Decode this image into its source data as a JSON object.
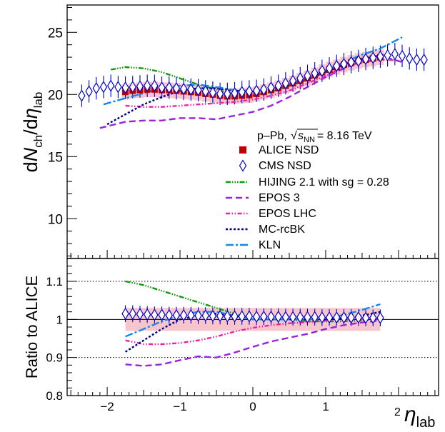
{
  "chart_data": [
    {
      "type": "scatter",
      "panel": "top",
      "collision": "p–Pb,",
      "energy_prefix": "s",
      "energy_sub": "NN",
      "energy_value": "= 8.16 TeV",
      "ylabel": {
        "d1": "d",
        "N": "N",
        "sub1": "ch",
        "slash": "/d",
        "eta": "η",
        "sub2": "lab"
      },
      "xlim": [
        -2.55,
        2.55
      ],
      "ylim": [
        6.8,
        27.2
      ],
      "yticks": [
        "10",
        "15",
        "20",
        "25"
      ],
      "legend_position": "middle-right",
      "series": [
        {
          "name": "ALICE NSD",
          "kind": "square",
          "color": "#c00000",
          "syst_band": 0.62,
          "x": [
            -1.75,
            -1.65,
            -1.55,
            -1.45,
            -1.35,
            -1.25,
            -1.15,
            -1.05,
            -0.95,
            -0.85,
            -0.75,
            -0.65,
            -0.55,
            -0.45,
            -0.35,
            -0.25,
            -0.15,
            -0.05,
            0.05,
            0.15,
            0.25,
            0.35,
            0.45,
            0.55,
            0.65,
            0.75,
            0.85,
            0.95,
            1.05,
            1.15,
            1.25,
            1.35,
            1.45,
            1.55,
            1.65,
            1.75
          ],
          "y": [
            20.2,
            20.3,
            20.35,
            20.4,
            20.4,
            20.35,
            20.35,
            20.3,
            20.25,
            20.2,
            20.15,
            20.05,
            20.0,
            19.9,
            19.85,
            19.85,
            19.9,
            19.95,
            20.05,
            20.2,
            20.35,
            20.5,
            20.7,
            20.9,
            21.1,
            21.3,
            21.55,
            21.8,
            22.0,
            22.2,
            22.4,
            22.55,
            22.7,
            22.8,
            22.9,
            23.0
          ]
        },
        {
          "name": "CMS NSD",
          "kind": "diamond",
          "color": "#0000cc",
          "err": 0.9,
          "x": [
            -2.35,
            -2.25,
            -2.15,
            -2.05,
            -1.95,
            -1.85,
            -1.75,
            -1.65,
            -1.55,
            -1.45,
            -1.35,
            -1.25,
            -1.15,
            -1.05,
            -0.95,
            -0.85,
            -0.75,
            -0.65,
            -0.55,
            -0.45,
            -0.35,
            -0.25,
            -0.15,
            -0.05,
            0.05,
            0.15,
            0.25,
            0.35,
            0.45,
            0.55,
            0.65,
            0.75,
            0.85,
            0.95,
            1.05,
            1.15,
            1.25,
            1.35,
            1.45,
            1.55,
            1.65,
            1.75,
            1.85,
            1.95,
            2.05,
            2.15,
            2.25,
            2.35
          ],
          "y": [
            19.9,
            20.25,
            20.5,
            20.6,
            20.7,
            20.6,
            20.55,
            20.6,
            20.65,
            20.7,
            20.7,
            20.55,
            20.55,
            20.5,
            20.45,
            20.4,
            20.35,
            20.25,
            20.15,
            20.05,
            20.05,
            20.1,
            20.2,
            20.25,
            20.3,
            20.4,
            20.55,
            20.7,
            20.9,
            21.1,
            21.3,
            21.5,
            21.7,
            21.9,
            22.1,
            22.3,
            22.45,
            22.6,
            22.7,
            22.85,
            22.95,
            23.05,
            23.15,
            23.25,
            23.1,
            22.9,
            22.8,
            22.8
          ]
        },
        {
          "name": "HIJING 2.1 with sg = 0.28",
          "kind": "line",
          "color": "#119911",
          "dash": "7,2,1.5,2,1.5,2,1.5,2",
          "x": [
            -1.95,
            -1.75,
            -1.5,
            -1.25,
            -1.0,
            -0.75,
            -0.5,
            -0.25,
            0.0,
            0.25,
            0.5,
            0.75,
            1.0,
            1.25,
            1.5,
            1.75
          ],
          "y": [
            22.0,
            22.2,
            22.1,
            21.8,
            21.3,
            20.8,
            20.4,
            20.0,
            19.9,
            20.2,
            20.7,
            21.3,
            21.9,
            22.45,
            22.85,
            23.1
          ]
        },
        {
          "name": "EPOS 3",
          "kind": "line",
          "color": "#9922dd",
          "dash": "9,5",
          "x": [
            -2.1,
            -1.75,
            -1.5,
            -1.25,
            -1.0,
            -0.75,
            -0.5,
            -0.25,
            0.0,
            0.25,
            0.5,
            0.75,
            1.0,
            1.25,
            1.5,
            1.7,
            1.85,
            2.05
          ],
          "y": [
            17.3,
            17.8,
            17.9,
            17.9,
            18.1,
            18.1,
            18.0,
            18.3,
            18.6,
            19.1,
            19.8,
            20.6,
            21.4,
            22.1,
            22.7,
            23.1,
            22.95,
            22.6
          ]
        },
        {
          "name": "EPOS LHC",
          "kind": "line",
          "color": "#ee22aa",
          "dash": "6,2.5,1.5,2.5,1.5,2.5",
          "x": [
            -1.75,
            -1.5,
            -1.25,
            -1.0,
            -0.75,
            -0.5,
            -0.25,
            0.0,
            0.25,
            0.5,
            0.75,
            1.0,
            1.25,
            1.5,
            1.75,
            2.0
          ],
          "y": [
            19.1,
            19.0,
            19.0,
            19.1,
            19.2,
            19.3,
            19.4,
            19.6,
            19.9,
            20.3,
            20.9,
            21.5,
            22.2,
            22.6,
            22.8,
            22.75
          ]
        },
        {
          "name": "MC-rcBK",
          "kind": "line",
          "color": "#000088",
          "dash": "3,2.5",
          "x": [
            -2.0,
            -1.75,
            -1.5,
            -1.25,
            -1.0,
            -0.75,
            -0.5,
            -0.25,
            0.0,
            0.25,
            0.5,
            0.75,
            1.0,
            1.25,
            1.5,
            1.75,
            1.9
          ],
          "y": [
            17.6,
            18.4,
            19.2,
            19.8,
            20.3,
            20.5,
            20.5,
            20.3,
            20.25,
            20.35,
            20.7,
            21.2,
            21.8,
            22.4,
            22.85,
            23.1,
            23.2
          ]
        },
        {
          "name": "KLN",
          "kind": "line",
          "color": "#1188ee",
          "dash": "11,3,3,3",
          "x": [
            -2.05,
            -1.75,
            -1.5,
            -1.25,
            -1.0,
            -0.75,
            -0.5,
            -0.25,
            0.0,
            0.25,
            0.5,
            0.75,
            1.0,
            1.25,
            1.5,
            1.75,
            2.05
          ],
          "y": [
            19.2,
            19.7,
            20.1,
            20.5,
            20.7,
            20.8,
            20.6,
            20.35,
            20.3,
            20.45,
            20.8,
            21.3,
            21.95,
            22.6,
            23.2,
            23.7,
            24.6
          ]
        }
      ]
    },
    {
      "type": "line",
      "panel": "bottom",
      "xlabel": {
        "eta": "η",
        "sub": "lab",
        "exponent": "2"
      },
      "ylabel": "Ratio to ALICE",
      "xlim": [
        -2.55,
        2.55
      ],
      "ylim": [
        0.8,
        1.16
      ],
      "xticks": [
        "−2",
        "−1",
        "0",
        "1"
      ],
      "yticks": [
        "0.8",
        "0.9",
        "1",
        "1.1"
      ],
      "ref_lines": [
        0.9,
        1.0,
        1.1
      ],
      "series": [
        {
          "name": "ALICE syst.",
          "kind": "band",
          "color": "#f7c6cc",
          "x": [
            -1.75,
            1.75
          ],
          "low": 0.97,
          "high": 1.03
        },
        {
          "name": "CMS NSD",
          "kind": "diamond",
          "color": "#0000cc",
          "err": 0.022,
          "x": [
            -1.75,
            -1.65,
            -1.55,
            -1.45,
            -1.35,
            -1.25,
            -1.15,
            -1.05,
            -0.95,
            -0.85,
            -0.75,
            -0.65,
            -0.55,
            -0.45,
            -0.35,
            -0.25,
            -0.15,
            -0.05,
            0.05,
            0.15,
            0.25,
            0.35,
            0.45,
            0.55,
            0.65,
            0.75,
            0.85,
            0.95,
            1.05,
            1.15,
            1.25,
            1.35,
            1.45,
            1.55,
            1.65,
            1.75
          ],
          "y": [
            1.015,
            1.015,
            1.014,
            1.013,
            1.012,
            1.012,
            1.011,
            1.011,
            1.011,
            1.011,
            1.01,
            1.01,
            1.009,
            1.009,
            1.008,
            1.008,
            1.008,
            1.008,
            1.007,
            1.007,
            1.007,
            1.007,
            1.006,
            1.006,
            1.006,
            1.006,
            1.006,
            1.005,
            1.005,
            1.005,
            1.005,
            1.005,
            1.005,
            1.004,
            1.004,
            1.004
          ]
        },
        {
          "name": "HIJING 2.1 with sg = 0.28",
          "kind": "line",
          "color": "#119911",
          "dash": "7,2,1.5,2,1.5,2,1.5,2",
          "x": [
            -1.75,
            -1.5,
            -1.25,
            -1.0,
            -0.75,
            -0.5,
            -0.25,
            0.0,
            0.25,
            0.5,
            0.75,
            1.0,
            1.25,
            1.5,
            1.75
          ],
          "y": [
            1.1,
            1.09,
            1.075,
            1.06,
            1.045,
            1.03,
            1.015,
            1.0,
            1.0,
            1.0,
            0.995,
            0.995,
            0.995,
            0.997,
            1.003
          ]
        },
        {
          "name": "EPOS 3",
          "kind": "line",
          "color": "#9922dd",
          "dash": "9,5",
          "x": [
            -1.75,
            -1.5,
            -1.25,
            -1.0,
            -0.75,
            -0.5,
            -0.25,
            0.0,
            0.25,
            0.5,
            0.75,
            1.0,
            1.25,
            1.5,
            1.75
          ],
          "y": [
            0.882,
            0.878,
            0.882,
            0.893,
            0.903,
            0.9,
            0.913,
            0.928,
            0.942,
            0.952,
            0.962,
            0.975,
            0.985,
            0.992,
            0.997
          ]
        },
        {
          "name": "EPOS LHC",
          "kind": "line",
          "color": "#ee22aa",
          "dash": "6,2.5,1.5,2.5,1.5,2.5",
          "x": [
            -1.75,
            -1.5,
            -1.25,
            -1.0,
            -0.75,
            -0.5,
            -0.25,
            0.0,
            0.25,
            0.5,
            0.75,
            1.0,
            1.25,
            1.5,
            1.75
          ],
          "y": [
            0.945,
            0.935,
            0.935,
            0.938,
            0.945,
            0.955,
            0.968,
            0.978,
            0.985,
            0.99,
            0.993,
            0.997,
            1.0,
            1.0,
            1.0
          ]
        },
        {
          "name": "MC-rcBK",
          "kind": "line",
          "color": "#000088",
          "dash": "3,2.5",
          "x": [
            -1.75,
            -1.5,
            -1.25,
            -1.0,
            -0.75,
            -0.5,
            -0.25,
            0.0,
            0.25,
            0.5,
            0.75,
            1.0,
            1.25,
            1.5,
            1.75
          ],
          "y": [
            0.915,
            0.945,
            0.975,
            1.0,
            1.01,
            1.015,
            1.01,
            1.005,
            1.0,
            1.0,
            1.0,
            1.0,
            1.003,
            1.01,
            1.02
          ]
        },
        {
          "name": "KLN",
          "kind": "line",
          "color": "#1188ee",
          "dash": "11,3,3,3",
          "x": [
            -1.75,
            -1.5,
            -1.25,
            -1.0,
            -0.75,
            -0.5,
            -0.25,
            0.0,
            0.25,
            0.5,
            0.75,
            1.0,
            1.25,
            1.5,
            1.75
          ],
          "y": [
            0.955,
            0.975,
            0.995,
            1.01,
            1.02,
            1.02,
            1.01,
            1.0,
            1.0,
            1.0,
            1.0,
            1.003,
            1.012,
            1.025,
            1.04
          ]
        }
      ]
    }
  ]
}
